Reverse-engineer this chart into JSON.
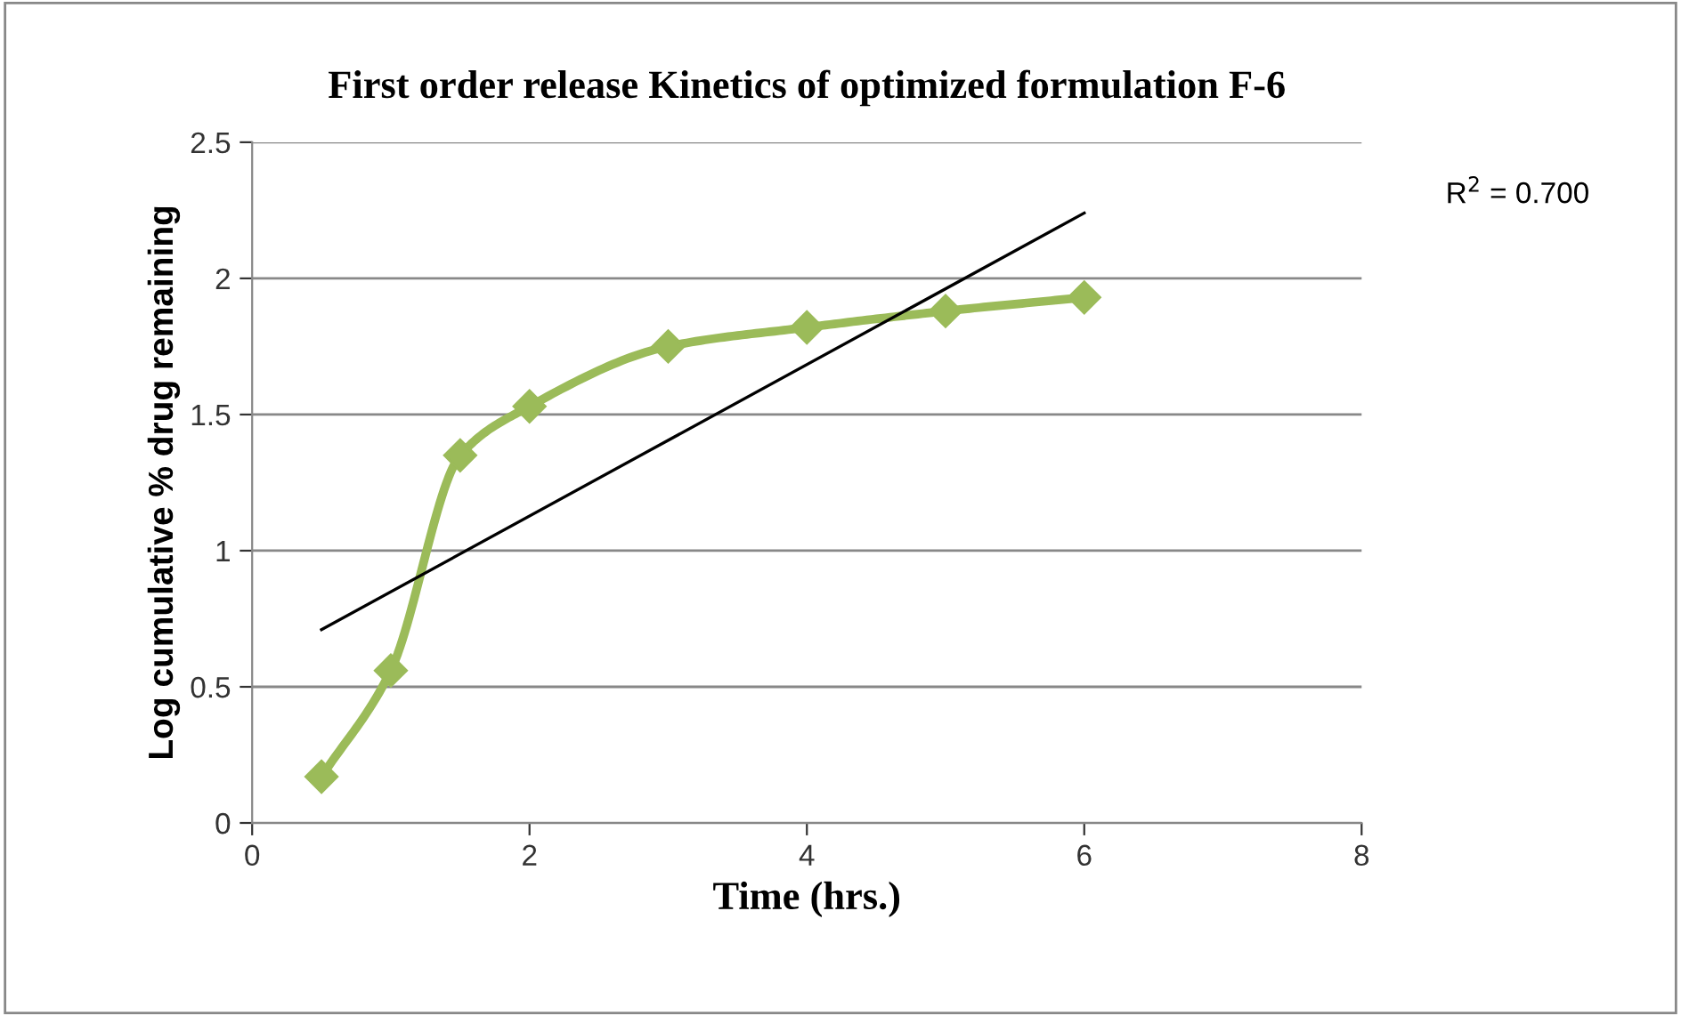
{
  "chart_data": {
    "type": "line",
    "title": "First order release Kinetics of optimized formulation F-6",
    "xlabel": "Time (hrs.)",
    "ylabel": "Log cumulative % drug remaining",
    "x": [
      0.5,
      1,
      1.5,
      2,
      3,
      4,
      5,
      6
    ],
    "series": [
      {
        "color": "#9bbb59",
        "values": [
          0.17,
          0.56,
          1.35,
          1.53,
          1.75,
          1.82,
          1.88,
          1.93
        ],
        "marker": "diamond"
      },
      {
        "color": "#000000",
        "x": [
          0.5,
          6
        ],
        "values": [
          0.71,
          2.24
        ],
        "marker": "none"
      }
    ],
    "xlim": [
      0,
      8
    ],
    "xticks": [
      0,
      2,
      4,
      6,
      8
    ],
    "ylim": [
      0,
      2.5
    ],
    "yticks": [
      0,
      0.5,
      1,
      1.5,
      2,
      2.5
    ],
    "grid": "y",
    "legend": false,
    "annotations": [
      "R$^{2}$ = 0.700"
    ]
  }
}
